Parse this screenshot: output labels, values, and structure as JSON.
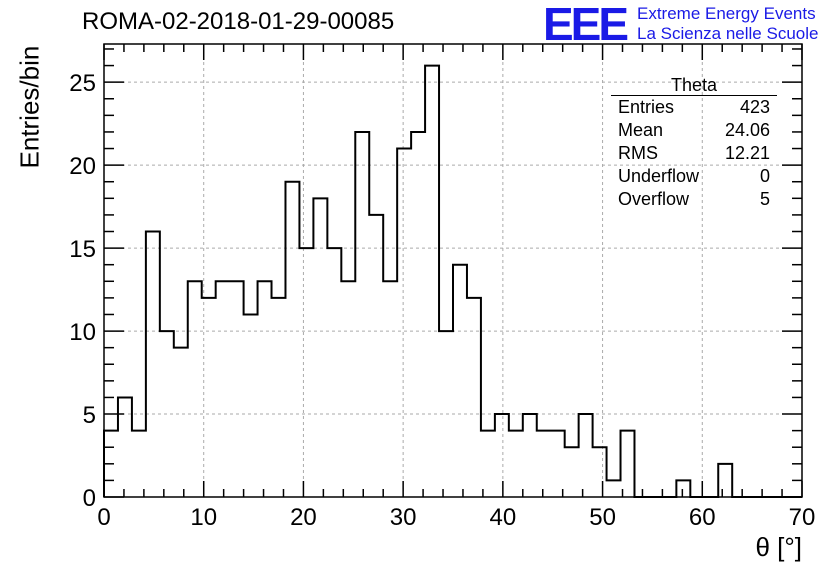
{
  "header": {
    "run_title": "ROMA-02-2018-01-29-00085",
    "logo_text": "EEE",
    "logo_line1": "Extreme Energy Events",
    "logo_line2": "La Scienza nelle Scuole"
  },
  "stats_box": {
    "title": "Theta",
    "rows": [
      {
        "label": "Entries",
        "value": "423"
      },
      {
        "label": "Mean",
        "value": "24.06"
      },
      {
        "label": "RMS",
        "value": "12.21"
      },
      {
        "label": "Underflow",
        "value": "0"
      },
      {
        "label": "Overflow",
        "value": "5"
      }
    ]
  },
  "chart_data": {
    "type": "bar",
    "histogram_style": "step",
    "xlabel": "θ [°]",
    "ylabel": "Entries/bin",
    "xlim": [
      0,
      70
    ],
    "ylim": [
      0,
      27.3
    ],
    "grid": true,
    "x_ticks": [
      0,
      10,
      20,
      30,
      40,
      50,
      60,
      70
    ],
    "y_ticks": [
      0,
      5,
      10,
      15,
      20,
      25
    ],
    "bin_edges_start": 0,
    "bin_width": 1.4,
    "values": [
      4,
      6,
      4,
      16,
      10,
      9,
      13,
      12,
      13,
      13,
      11,
      13,
      12,
      19,
      15,
      18,
      15,
      13,
      22,
      17,
      13,
      21,
      22,
      26,
      10,
      14,
      12,
      4,
      5,
      4,
      5,
      4,
      4,
      3,
      5,
      3,
      1,
      4,
      0,
      0,
      0,
      1,
      0,
      0,
      2,
      0,
      0,
      0,
      0,
      0
    ],
    "colors": {
      "line": "#000000",
      "grid": "#aaaaaa",
      "logo": "#1a1ae6"
    }
  }
}
